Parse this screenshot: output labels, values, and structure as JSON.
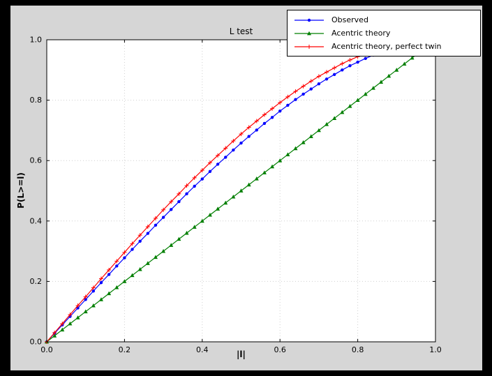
{
  "figure": {
    "bg_outer": "#000000",
    "bg_figure": "#d6d6d6",
    "bg_axes": "#ffffff"
  },
  "legend": {
    "position": "upper right",
    "entries": [
      {
        "label": "Observed",
        "color": "#0000ff",
        "marker": "circle"
      },
      {
        "label": "Acentric theory",
        "color": "#007f00",
        "marker": "triangle"
      },
      {
        "label": "Acentric theory, perfect twin",
        "color": "#ff0000",
        "marker": "plus"
      }
    ]
  },
  "chart_data": {
    "type": "line",
    "title": "L test",
    "xlabel": "|l|",
    "ylabel": "P(L>=l)",
    "xlim": [
      0,
      1
    ],
    "ylim": [
      0,
      1
    ],
    "xticks": [
      0.0,
      0.2,
      0.4,
      0.6,
      0.8,
      1.0
    ],
    "yticks": [
      0.0,
      0.2,
      0.4,
      0.6,
      0.8,
      1.0
    ],
    "xtick_labels": [
      "0.0",
      "0.2",
      "0.4",
      "0.6",
      "0.8",
      "1.0"
    ],
    "ytick_labels": [
      "0.0",
      "0.2",
      "0.4",
      "0.6",
      "0.8",
      "1.0"
    ],
    "grid": true,
    "legend_position": "upper right",
    "series": [
      {
        "name": "Observed",
        "color": "#0000ff",
        "marker": "circle",
        "x": [
          0.0,
          0.02,
          0.04,
          0.06,
          0.08,
          0.1,
          0.12,
          0.14,
          0.16,
          0.18,
          0.2,
          0.22,
          0.24,
          0.26,
          0.28,
          0.3,
          0.32,
          0.34,
          0.36,
          0.38,
          0.4,
          0.42,
          0.44,
          0.46,
          0.48,
          0.5,
          0.52,
          0.54,
          0.56,
          0.58,
          0.6,
          0.62,
          0.64,
          0.66,
          0.68,
          0.7,
          0.72,
          0.74,
          0.76,
          0.78,
          0.8,
          0.82,
          0.84,
          0.86
        ],
        "y": [
          0.0,
          0.028,
          0.056,
          0.084,
          0.112,
          0.14,
          0.168,
          0.196,
          0.223,
          0.251,
          0.278,
          0.306,
          0.333,
          0.359,
          0.386,
          0.412,
          0.438,
          0.464,
          0.49,
          0.515,
          0.539,
          0.564,
          0.588,
          0.611,
          0.635,
          0.658,
          0.68,
          0.701,
          0.723,
          0.743,
          0.764,
          0.783,
          0.802,
          0.82,
          0.837,
          0.854,
          0.87,
          0.885,
          0.9,
          0.914,
          0.926,
          0.938,
          0.949,
          0.959
        ]
      },
      {
        "name": "Acentric theory",
        "color": "#007f00",
        "marker": "triangle",
        "x": [
          0.0,
          0.02,
          0.04,
          0.06,
          0.08,
          0.1,
          0.12,
          0.14,
          0.16,
          0.18,
          0.2,
          0.22,
          0.24,
          0.26,
          0.28,
          0.3,
          0.32,
          0.34,
          0.36,
          0.38,
          0.4,
          0.42,
          0.44,
          0.46,
          0.48,
          0.5,
          0.52,
          0.54,
          0.56,
          0.58,
          0.6,
          0.62,
          0.64,
          0.66,
          0.68,
          0.7,
          0.72,
          0.74,
          0.76,
          0.78,
          0.8,
          0.82,
          0.84,
          0.86,
          0.88,
          0.9,
          0.92,
          0.94,
          0.96
        ],
        "y": [
          0.0,
          0.02,
          0.04,
          0.06,
          0.08,
          0.1,
          0.12,
          0.14,
          0.16,
          0.18,
          0.2,
          0.22,
          0.24,
          0.26,
          0.28,
          0.3,
          0.32,
          0.34,
          0.36,
          0.38,
          0.4,
          0.42,
          0.44,
          0.46,
          0.48,
          0.5,
          0.52,
          0.54,
          0.56,
          0.58,
          0.6,
          0.62,
          0.64,
          0.66,
          0.68,
          0.7,
          0.72,
          0.74,
          0.76,
          0.78,
          0.8,
          0.82,
          0.84,
          0.86,
          0.88,
          0.9,
          0.92,
          0.94,
          0.96
        ]
      },
      {
        "name": "Acentric theory, perfect twin",
        "color": "#ff0000",
        "marker": "plus",
        "x": [
          0.0,
          0.02,
          0.04,
          0.06,
          0.08,
          0.1,
          0.12,
          0.14,
          0.16,
          0.18,
          0.2,
          0.22,
          0.24,
          0.26,
          0.28,
          0.3,
          0.32,
          0.34,
          0.36,
          0.38,
          0.4,
          0.42,
          0.44,
          0.46,
          0.48,
          0.5,
          0.52,
          0.54,
          0.56,
          0.58,
          0.6,
          0.62,
          0.64,
          0.66,
          0.68,
          0.7,
          0.72,
          0.74,
          0.76,
          0.78,
          0.8,
          0.82,
          0.84,
          0.86,
          0.88
        ],
        "y": [
          0.0,
          0.03,
          0.06,
          0.09,
          0.12,
          0.149,
          0.179,
          0.209,
          0.238,
          0.267,
          0.296,
          0.325,
          0.353,
          0.381,
          0.409,
          0.437,
          0.464,
          0.49,
          0.517,
          0.543,
          0.568,
          0.593,
          0.617,
          0.641,
          0.665,
          0.688,
          0.71,
          0.731,
          0.752,
          0.772,
          0.792,
          0.811,
          0.829,
          0.846,
          0.863,
          0.879,
          0.893,
          0.907,
          0.921,
          0.933,
          0.944,
          0.954,
          0.964,
          0.972,
          0.979
        ]
      }
    ]
  }
}
